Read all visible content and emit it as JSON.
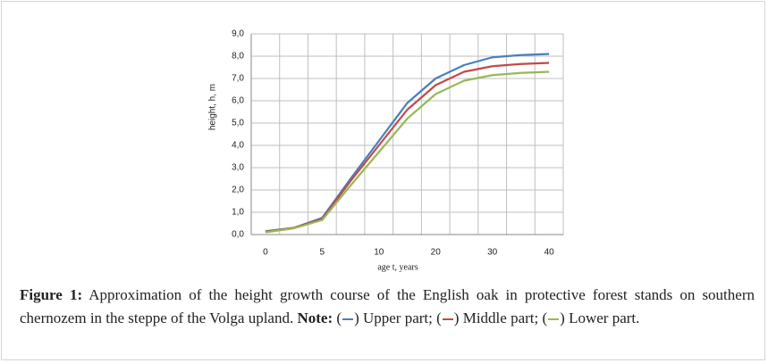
{
  "chart_data": {
    "type": "line",
    "x_label": "age t, years",
    "y_label": "height, h, m",
    "categories": [
      "0",
      null,
      "5",
      null,
      "10",
      null,
      "20",
      null,
      "30",
      null,
      "40"
    ],
    "series": [
      {
        "name": "Upper part;",
        "color": "#4a7ebb",
        "values": [
          0.15,
          0.3,
          0.75,
          2.5,
          4.2,
          5.9,
          7.0,
          7.6,
          7.95,
          8.05,
          8.1
        ]
      },
      {
        "name": "Middle part;",
        "color": "#be4b48",
        "values": [
          0.12,
          0.3,
          0.7,
          2.4,
          4.0,
          5.6,
          6.7,
          7.3,
          7.55,
          7.65,
          7.7
        ]
      },
      {
        "name": "Lower part.",
        "color": "#98b954",
        "values": [
          0.1,
          0.28,
          0.65,
          2.2,
          3.7,
          5.2,
          6.3,
          6.9,
          7.15,
          7.25,
          7.3
        ]
      }
    ],
    "ylim": [
      0,
      9
    ],
    "yticks": [
      {
        "value": 0,
        "label": "0,0"
      },
      {
        "value": 1,
        "label": "1,0"
      },
      {
        "value": 2,
        "label": "2,0"
      },
      {
        "value": 3,
        "label": "3,0"
      },
      {
        "value": 4,
        "label": "4,0"
      },
      {
        "value": 5,
        "label": "5,0"
      },
      {
        "value": 6,
        "label": "6,0"
      },
      {
        "value": 7,
        "label": "7,0"
      },
      {
        "value": 8,
        "label": "8,0"
      },
      {
        "value": 9,
        "label": "9,0"
      }
    ],
    "grid": true
  },
  "caption": {
    "label": "Figure 1:",
    "text": "Approximation of the height growth course of the English oak in protective forest stands on southern chernozem in the steppe of the Volga upland.",
    "note_label": "Note:"
  }
}
